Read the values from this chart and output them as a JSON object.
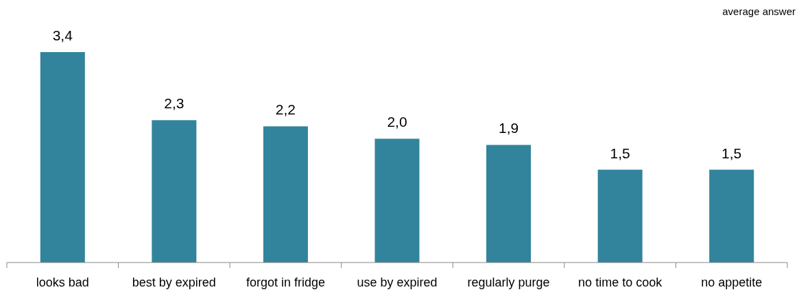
{
  "chart_data": {
    "type": "bar",
    "ylabel": "average answer",
    "categories": [
      "looks bad",
      "best by expired",
      "forgot in fridge",
      "use by expired",
      "regularly purge",
      "no time to cook",
      "no appetite"
    ],
    "values": [
      3.4,
      2.3,
      2.2,
      2.0,
      1.9,
      1.5,
      1.5
    ],
    "value_labels": [
      "3,4",
      "2,3",
      "2,2",
      "2,0",
      "1,9",
      "1,5",
      "1,5"
    ],
    "color": "#31849b"
  }
}
